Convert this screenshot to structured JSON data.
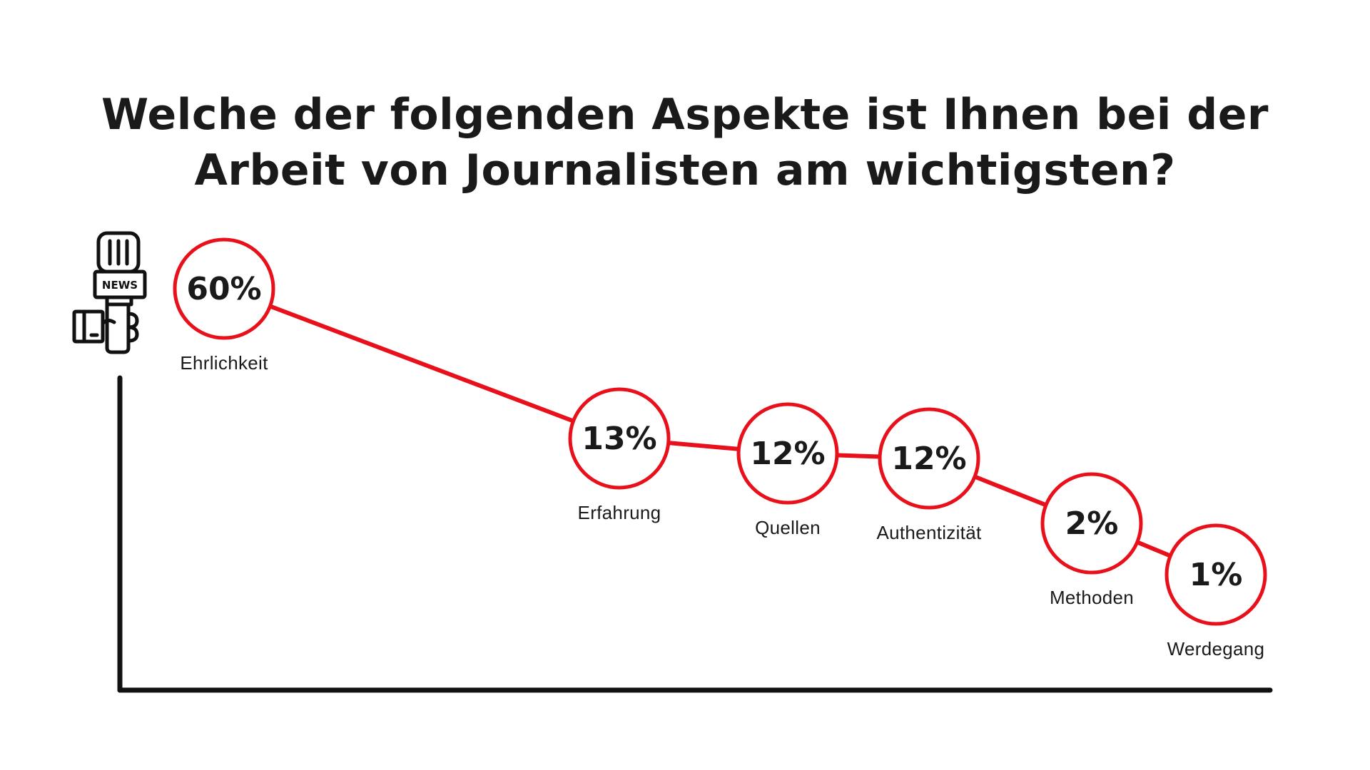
{
  "title_lines": [
    "Welche der folgenden Aspekte ist Ihnen bei der",
    "Arbeit von Journalisten am wichtigsten?"
  ],
  "icon": "news-microphone-icon",
  "icon_text": "NEWS",
  "colors": {
    "accent": "#e8101a",
    "text": "#1a1a1a",
    "axis": "#111111",
    "background": "#ffffff"
  },
  "chart_data": {
    "type": "line",
    "title": "Welche der folgenden Aspekte ist Ihnen bei der Arbeit von Journalisten am wichtigsten?",
    "categories": [
      "Ehrlichkeit",
      "Erfahrung",
      "Quellen",
      "Authentizität",
      "Methoden",
      "Werdegang"
    ],
    "values": [
      60,
      13,
      12,
      12,
      2,
      1
    ],
    "value_labels": [
      "60%",
      "13%",
      "12%",
      "12%",
      "2%",
      "1%"
    ],
    "unit": "%",
    "xlabel": "",
    "ylabel": "",
    "grid": false,
    "legend": "none"
  }
}
